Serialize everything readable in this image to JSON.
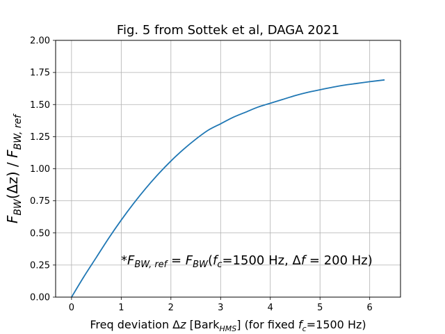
{
  "chart_data": {
    "type": "line",
    "title": "Fig. 5 from Sottek et al, DAGA 2021",
    "xlabel": {
      "prefix": "Freq deviation Δ",
      "var": "z",
      "mid": " [Bark",
      "sub": "HMS",
      "rest": "] (for fixed ",
      "fvar": "f",
      "fsub": "c",
      "tail": "=1500 Hz)"
    },
    "ylabel": {
      "f1": "F",
      "s1": "BW",
      "mid": "(Δz) / ",
      "f2": "F",
      "s2": "BW, ref"
    },
    "annotation": {
      "star": "*",
      "f1": "F",
      "s1": "BW, ref",
      "eq": " = ",
      "f2": "F",
      "s2": "BW",
      "open": "(",
      "fc": "f",
      "fcs": "c",
      "mid": "=1500 Hz, Δ",
      "df": "f",
      "tail": " = 200 Hz)"
    },
    "xlim": [
      -0.32,
      6.62
    ],
    "ylim": [
      0.0,
      2.0
    ],
    "xticks": [
      0,
      1,
      2,
      3,
      4,
      5,
      6
    ],
    "xtick_labels": [
      "0",
      "1",
      "2",
      "3",
      "4",
      "5",
      "6"
    ],
    "yticks": [
      0.0,
      0.25,
      0.5,
      0.75,
      1.0,
      1.25,
      1.5,
      1.75,
      2.0
    ],
    "ytick_labels": [
      "0.00",
      "0.25",
      "0.50",
      "0.75",
      "1.00",
      "1.25",
      "1.50",
      "1.75",
      "2.00"
    ],
    "grid": true,
    "series": [
      {
        "color": "#1f77b4",
        "x": [
          0,
          0.25,
          0.5,
          0.75,
          1.0,
          1.25,
          1.5,
          1.75,
          2.0,
          2.25,
          2.5,
          2.75,
          3.0,
          3.25,
          3.5,
          3.75,
          4.0,
          4.25,
          4.5,
          4.75,
          5.0,
          5.25,
          5.5,
          5.75,
          6.0,
          6.3
        ],
        "y": [
          0.0,
          0.16,
          0.31,
          0.46,
          0.6,
          0.73,
          0.85,
          0.96,
          1.06,
          1.15,
          1.23,
          1.3,
          1.35,
          1.4,
          1.44,
          1.48,
          1.51,
          1.54,
          1.57,
          1.595,
          1.615,
          1.635,
          1.652,
          1.665,
          1.678,
          1.692
        ]
      }
    ]
  }
}
